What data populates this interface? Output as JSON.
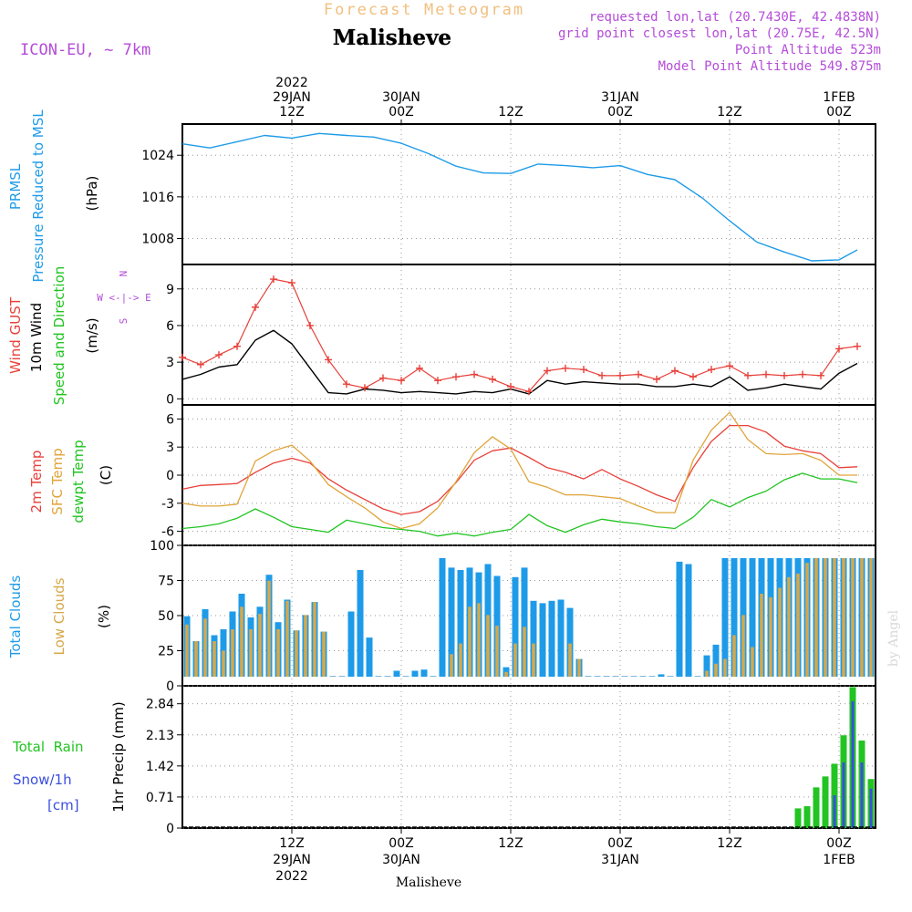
{
  "header": {
    "product": "Forecast Meteogram",
    "location": "Malisheve",
    "model": "ICON-EU, ~ 7km",
    "requested": "requested lon,lat (20.7430E, 42.4838N)",
    "gridpoint": "grid point closest lon,lat (20.75E, 42.5N)",
    "point_alt": "Point Altitude 523m",
    "model_alt": "Model Point Altitude 549.875m"
  },
  "footer": {
    "location": "Malisheve",
    "watermark": "by Angel"
  },
  "time_axis": {
    "top": [
      {
        "lines": [
          "2022",
          "29JAN",
          "12Z"
        ],
        "hour": 12
      },
      {
        "lines": [
          "30JAN",
          "00Z"
        ],
        "hour": 24
      },
      {
        "lines": [
          "12Z"
        ],
        "hour": 36
      },
      {
        "lines": [
          "31JAN",
          "00Z"
        ],
        "hour": 48
      },
      {
        "lines": [
          "12Z"
        ],
        "hour": 60
      },
      {
        "lines": [
          "1FEB",
          "00Z"
        ],
        "hour": 72
      }
    ],
    "bottom": [
      {
        "lines": [
          "12Z",
          "29JAN",
          "2022"
        ],
        "hour": 12
      },
      {
        "lines": [
          "00Z",
          "30JAN"
        ],
        "hour": 24
      },
      {
        "lines": [
          "12Z"
        ],
        "hour": 36
      },
      {
        "lines": [
          "00Z",
          "31JAN"
        ],
        "hour": 48
      },
      {
        "lines": [
          "12Z"
        ],
        "hour": 60
      },
      {
        "lines": [
          "00Z",
          "1FEB"
        ],
        "hour": 72
      }
    ]
  },
  "panels": {
    "pressure": {
      "labels": [
        "PRMSL",
        "Pressure Reduced to MSL"
      ],
      "unit": "(hPa)",
      "ticks": [
        1008,
        1016,
        1024
      ]
    },
    "wind": {
      "labels": [
        "Wind GUST",
        "10m Wind",
        "Speed and Direction"
      ],
      "unit": "(m/s)",
      "ticks": [
        0,
        3,
        6,
        9
      ],
      "compass": [
        "N",
        "W <-|-> E",
        "S"
      ]
    },
    "temp": {
      "labels": [
        "2m Temp",
        "SFC Temp",
        "dewpt Temp"
      ],
      "unit": "(C)",
      "ticks": [
        -6,
        -3,
        0,
        3,
        6
      ]
    },
    "clouds": {
      "labels": [
        "Total Clouds",
        "Low Clouds"
      ],
      "unit": "(%)",
      "ticks": [
        0,
        25,
        50,
        75,
        100
      ]
    },
    "precip": {
      "labels": [
        "Total  Rain",
        "Snow/1h",
        "[cm]"
      ],
      "unit": "1hr Precip (mm)",
      "ticks": [
        "0",
        "0.71",
        "1.42",
        "2.13",
        "2.84"
      ]
    }
  },
  "colors": {
    "pressure": "#1e9be8",
    "gust": "#e8403a",
    "wind": "#000000",
    "t2m": "#e8403a",
    "tsfc": "#e0a43a",
    "dewpt": "#22c422",
    "total_clouds": "#1e9be8",
    "low_clouds": "#d6a84a",
    "rain": "#22c422",
    "snow": "#3a4ee0",
    "label_purple": "#b44cd8",
    "title_orange": "#f0c080"
  },
  "chart_data": [
    {
      "type": "line",
      "title": "PRMSL Pressure Reduced to MSL",
      "ylabel": "(hPa)",
      "x_hours": [
        0,
        3,
        6,
        9,
        12,
        15,
        18,
        21,
        24,
        27,
        30,
        33,
        36,
        39,
        42,
        45,
        48,
        51,
        54,
        57,
        60,
        63,
        66,
        69,
        72,
        74
      ],
      "ylim": [
        1003,
        1030
      ],
      "series": [
        {
          "values": [
            1026.2,
            1025.4,
            1026.6,
            1027.8,
            1027.3,
            1028.2,
            1027.8,
            1027.5,
            1026.3,
            1024.3,
            1021.9,
            1020.6,
            1020.5,
            1022.3,
            1022.0,
            1021.6,
            1022.0,
            1020.3,
            1019.3,
            1015.8,
            1011.4,
            1007.3,
            1005.4,
            1003.7,
            1003.9,
            1005.8
          ]
        }
      ]
    },
    {
      "type": "line",
      "title": "Wind GUST / 10m Wind Speed and Direction",
      "ylabel": "(m/s)",
      "x_hours": [
        0,
        2,
        4,
        6,
        8,
        10,
        12,
        14,
        16,
        18,
        20,
        22,
        24,
        26,
        28,
        30,
        32,
        34,
        36,
        38,
        40,
        42,
        44,
        46,
        48,
        50,
        52,
        54,
        56,
        58,
        60,
        62,
        64,
        66,
        68,
        70,
        72,
        74
      ],
      "ylim": [
        -0.5,
        11
      ],
      "series": [
        {
          "name": "Wind GUST",
          "values": [
            3.4,
            2.8,
            3.6,
            4.3,
            7.5,
            9.8,
            9.5,
            6.0,
            3.2,
            1.2,
            0.9,
            1.7,
            1.5,
            2.5,
            1.5,
            1.8,
            2.0,
            1.6,
            1.0,
            0.6,
            2.3,
            2.5,
            2.4,
            1.9,
            1.9,
            2.0,
            1.6,
            2.3,
            1.8,
            2.4,
            2.7,
            1.9,
            2.0,
            1.9,
            2.0,
            1.9,
            4.1,
            4.3
          ]
        },
        {
          "name": "10m Wind",
          "values": [
            1.6,
            2.0,
            2.6,
            2.8,
            4.8,
            5.6,
            4.5,
            2.5,
            0.5,
            0.4,
            0.8,
            0.7,
            0.5,
            0.6,
            0.5,
            0.4,
            0.6,
            0.5,
            0.8,
            0.4,
            1.5,
            1.2,
            1.4,
            1.3,
            1.2,
            1.2,
            1.0,
            1.0,
            1.2,
            1.0,
            1.8,
            0.7,
            0.9,
            1.2,
            1.0,
            0.8,
            2.1,
            2.9
          ]
        }
      ]
    },
    {
      "type": "line",
      "title": "2m Temp / SFC Temp / dewpt Temp",
      "ylabel": "(C)",
      "x_hours": [
        0,
        2,
        4,
        6,
        8,
        10,
        12,
        14,
        16,
        18,
        20,
        22,
        24,
        26,
        28,
        30,
        32,
        34,
        36,
        38,
        40,
        42,
        44,
        46,
        48,
        50,
        52,
        54,
        56,
        58,
        60,
        62,
        64,
        66,
        68,
        70,
        72,
        74
      ],
      "ylim": [
        -7.5,
        7.5
      ],
      "series": [
        {
          "name": "2m Temp",
          "values": [
            -1.5,
            -1.1,
            -1.0,
            -0.9,
            0.3,
            1.3,
            1.8,
            1.3,
            -0.4,
            -1.6,
            -2.6,
            -3.6,
            -4.2,
            -3.9,
            -2.8,
            -0.8,
            1.6,
            2.6,
            2.9,
            1.9,
            0.8,
            0.3,
            -0.4,
            0.6,
            -0.4,
            -1.2,
            -2.1,
            -2.8,
            0.8,
            3.6,
            5.3,
            5.3,
            4.6,
            3.1,
            2.6,
            2.3,
            0.8,
            0.9
          ]
        },
        {
          "name": "SFC Temp",
          "values": [
            -3.0,
            -3.3,
            -3.3,
            -3.1,
            1.5,
            2.6,
            3.2,
            1.5,
            -1.0,
            -2.3,
            -3.5,
            -5.0,
            -5.7,
            -5.2,
            -3.5,
            -0.7,
            2.4,
            4.1,
            2.8,
            -0.7,
            -1.3,
            -2.1,
            -2.1,
            -2.3,
            -2.5,
            -3.3,
            -4.0,
            -4.0,
            1.6,
            4.8,
            6.7,
            3.8,
            2.3,
            2.2,
            2.3,
            1.6,
            0.0,
            0.0
          ]
        },
        {
          "name": "dewpt Temp",
          "values": [
            -5.7,
            -5.5,
            -5.2,
            -4.6,
            -3.6,
            -4.5,
            -5.5,
            -5.8,
            -6.1,
            -4.8,
            -5.2,
            -5.6,
            -5.8,
            -6.0,
            -6.5,
            -6.2,
            -6.5,
            -6.1,
            -5.8,
            -4.2,
            -5.4,
            -6.1,
            -5.3,
            -4.7,
            -5.0,
            -5.2,
            -5.5,
            -5.7,
            -4.5,
            -2.6,
            -3.4,
            -2.4,
            -1.7,
            -0.5,
            0.2,
            -0.4,
            -0.4,
            -0.8
          ]
        }
      ]
    },
    {
      "type": "bar",
      "title": "Total Clouds / Low Clouds",
      "ylabel": "(%)",
      "x_hours": [
        0,
        1,
        2,
        3,
        4,
        5,
        6,
        7,
        8,
        9,
        10,
        11,
        12,
        13,
        14,
        15,
        16,
        17,
        18,
        19,
        20,
        21,
        22,
        23,
        24,
        25,
        26,
        27,
        28,
        29,
        30,
        31,
        32,
        33,
        34,
        35,
        36,
        37,
        38,
        39,
        40,
        41,
        42,
        43,
        44,
        45,
        46,
        47,
        48,
        49,
        50,
        51,
        52,
        53,
        54,
        55,
        56,
        57,
        58,
        59,
        60,
        61,
        62,
        63,
        64,
        65,
        66,
        67,
        68,
        69,
        70,
        71,
        72,
        73,
        74,
        75
      ],
      "ylim": [
        0,
        100
      ],
      "series": [
        {
          "name": "Total Clouds",
          "values": [
            51,
            30,
            57,
            35,
            40,
            55,
            70,
            50,
            59,
            86,
            46,
            65,
            39,
            52,
            63,
            38,
            0,
            0,
            55,
            90,
            33,
            0,
            0,
            5,
            0,
            5,
            6,
            0,
            100,
            92,
            90,
            92,
            88,
            95,
            85,
            8,
            84,
            92,
            64,
            62,
            64,
            65,
            58,
            15,
            0,
            0,
            0,
            0,
            0,
            0,
            0,
            0,
            2,
            0,
            97,
            95,
            0,
            18,
            27,
            100,
            100,
            100,
            100,
            100,
            100,
            100,
            100,
            100,
            100,
            100,
            100,
            100,
            100,
            100,
            100,
            100
          ]
        },
        {
          "name": "Low Clouds",
          "values": [
            44,
            30,
            49,
            30,
            22,
            40,
            59,
            40,
            53,
            81,
            40,
            64,
            39,
            52,
            63,
            38,
            0,
            0,
            0,
            0,
            0,
            0,
            0,
            0,
            0,
            0,
            0,
            0,
            0,
            19,
            28,
            59,
            62,
            52,
            43,
            4,
            28,
            42,
            28,
            0,
            0,
            0,
            28,
            15,
            0,
            0,
            0,
            0,
            0,
            0,
            0,
            0,
            0,
            0,
            0,
            0,
            0,
            5,
            11,
            15,
            35,
            52,
            25,
            70,
            67,
            75,
            84,
            87,
            96,
            100,
            100,
            100,
            100,
            100,
            100,
            100
          ]
        }
      ]
    },
    {
      "type": "bar",
      "title": "Total Rain / Snow",
      "ylabel": "1hr Precip (mm)",
      "x_hours": [
        67,
        68,
        69,
        70,
        71,
        72,
        73,
        74,
        75
      ],
      "ylim": [
        0,
        3.25
      ],
      "series": [
        {
          "name": "Total Rain",
          "values": [
            0.45,
            0.5,
            0.93,
            1.18,
            1.47,
            2.12,
            3.22,
            2.0,
            1.12
          ]
        },
        {
          "name": "Snow/1h",
          "values": [
            0,
            0,
            0,
            0,
            0.75,
            1.5,
            2.9,
            1.5,
            0.9
          ]
        }
      ]
    }
  ]
}
